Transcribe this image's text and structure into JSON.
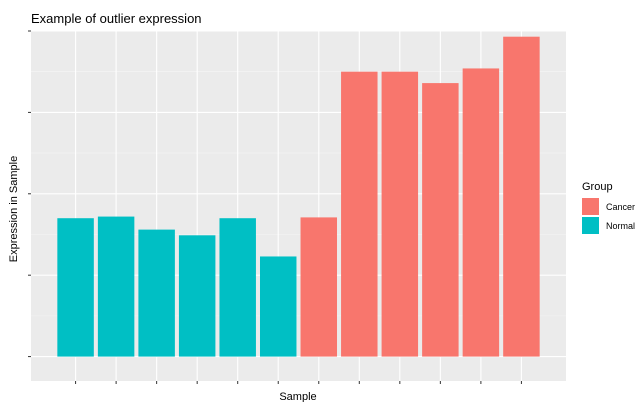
{
  "chart_data": {
    "type": "bar",
    "title": "Example of outlier expression",
    "xlabel": "Sample",
    "ylabel": "Expression in Sample",
    "x_ticks_labeled": false,
    "y_ticks_labeled": false,
    "ylim": [
      -0.3,
      4.0
    ],
    "grid": true,
    "legend_placement": "right",
    "legend": {
      "title": "Group",
      "entries": [
        {
          "name": "Cancer",
          "color": "#F8766D"
        },
        {
          "name": "Normal",
          "color": "#00BFC4"
        }
      ]
    },
    "bars": [
      {
        "group": "Normal",
        "value": 1.7
      },
      {
        "group": "Normal",
        "value": 1.72
      },
      {
        "group": "Normal",
        "value": 1.56
      },
      {
        "group": "Normal",
        "value": 1.49
      },
      {
        "group": "Normal",
        "value": 1.7
      },
      {
        "group": "Normal",
        "value": 1.23
      },
      {
        "group": "Cancer",
        "value": 1.71
      },
      {
        "group": "Cancer",
        "value": 3.5
      },
      {
        "group": "Cancer",
        "value": 3.5
      },
      {
        "group": "Cancer",
        "value": 3.36
      },
      {
        "group": "Cancer",
        "value": 3.54
      },
      {
        "group": "Cancer",
        "value": 3.93
      }
    ]
  }
}
